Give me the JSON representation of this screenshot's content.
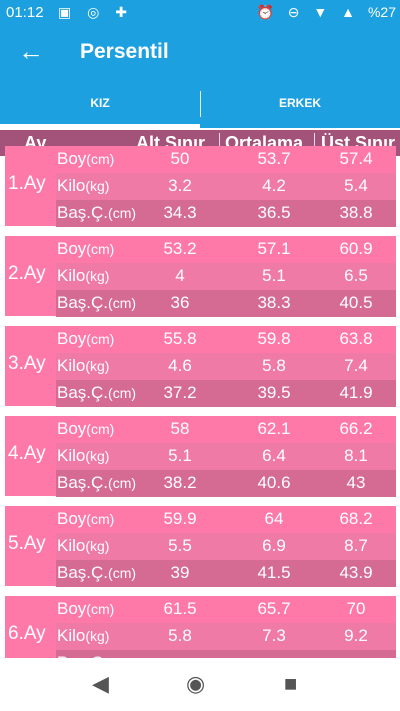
{
  "status": {
    "time": "01:12",
    "left_icons": "▣ ◎ ✚",
    "right_icons": "⏰ ⊖ ▼ ▲",
    "battery": "%27"
  },
  "appbar": {
    "back_icon": "←",
    "title": "Persentil"
  },
  "tabs": {
    "kiz": "KIZ",
    "erkek": "ERKEK"
  },
  "header": {
    "ay": "Ay",
    "alt": "Alt Sınır",
    "ort": "Ortalama",
    "ust": "Üst Sınır"
  },
  "units": {
    "boy": "(cm)",
    "kilo": "(kg)",
    "bas": "(cm)"
  },
  "labels": {
    "boy": "Boy",
    "kilo": "Kilo",
    "bas": "Baş.Ç."
  },
  "months": [
    {
      "label": "1.Ay",
      "boy": [
        "50",
        "53.7",
        "57.4"
      ],
      "kilo": [
        "3.2",
        "4.2",
        "5.4"
      ],
      "bas": [
        "34.3",
        "36.5",
        "38.8"
      ]
    },
    {
      "label": "2.Ay",
      "boy": [
        "53.2",
        "57.1",
        "60.9"
      ],
      "kilo": [
        "4",
        "5.1",
        "6.5"
      ],
      "bas": [
        "36",
        "38.3",
        "40.5"
      ]
    },
    {
      "label": "3.Ay",
      "boy": [
        "55.8",
        "59.8",
        "63.8"
      ],
      "kilo": [
        "4.6",
        "5.8",
        "7.4"
      ],
      "bas": [
        "37.2",
        "39.5",
        "41.9"
      ]
    },
    {
      "label": "4.Ay",
      "boy": [
        "58",
        "62.1",
        "66.2"
      ],
      "kilo": [
        "5.1",
        "6.4",
        "8.1"
      ],
      "bas": [
        "38.2",
        "40.6",
        "43"
      ]
    },
    {
      "label": "5.Ay",
      "boy": [
        "59.9",
        "64",
        "68.2"
      ],
      "kilo": [
        "5.5",
        "6.9",
        "8.7"
      ],
      "bas": [
        "39",
        "41.5",
        "43.9"
      ]
    },
    {
      "label": "6.Ay",
      "boy": [
        "61.5",
        "65.7",
        "70"
      ],
      "kilo": [
        "5.8",
        "7.3",
        "9.2"
      ],
      "bas": [
        "",
        "",
        ""
      ]
    }
  ],
  "navbar": {
    "back": "◀",
    "home": "◉",
    "recent": "■"
  }
}
